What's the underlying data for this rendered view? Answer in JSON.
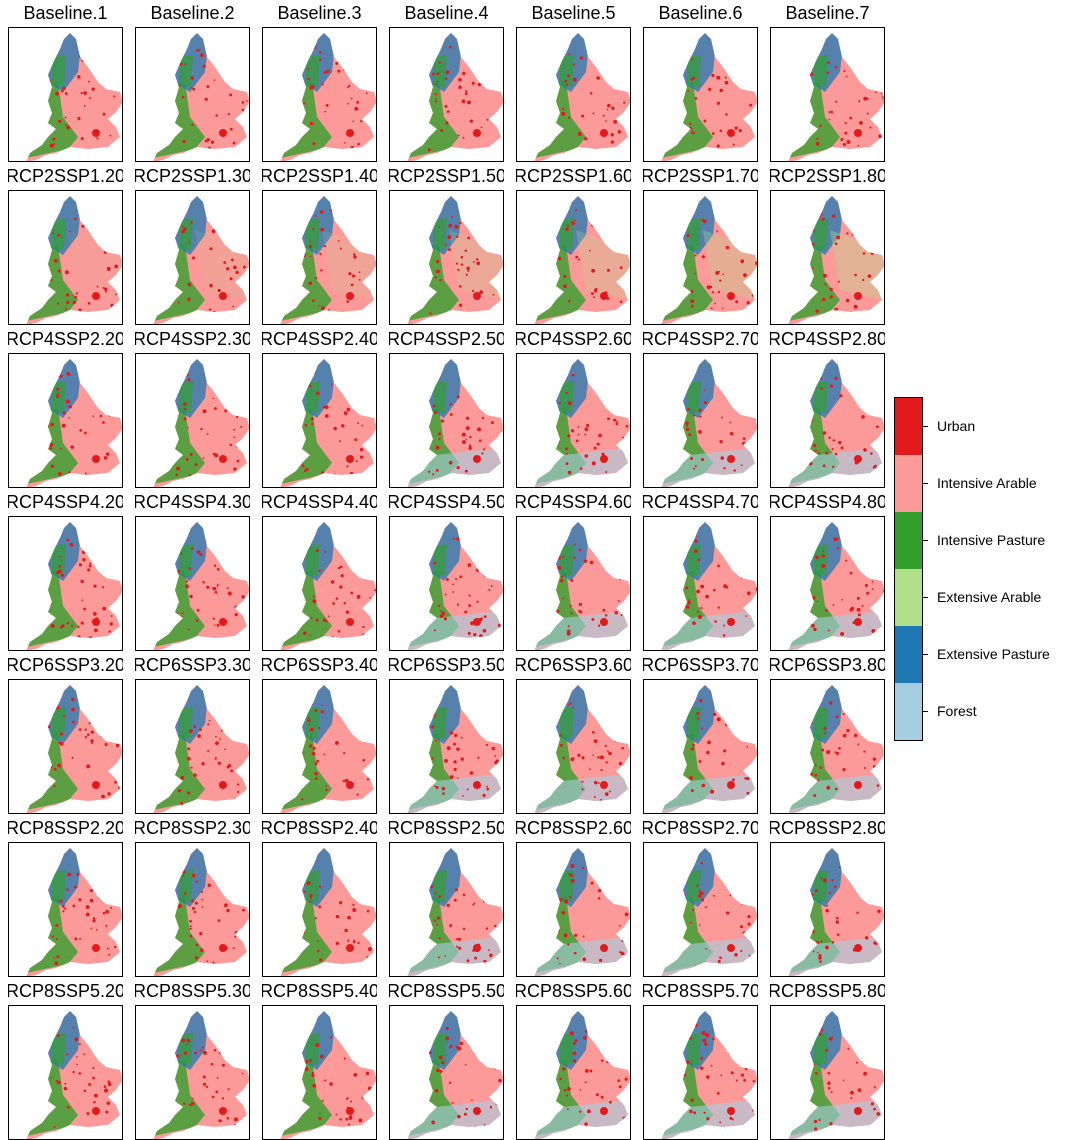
{
  "panels": [
    {
      "title": "Baseline.1"
    },
    {
      "title": "Baseline.2"
    },
    {
      "title": "Baseline.3"
    },
    {
      "title": "Baseline.4"
    },
    {
      "title": "Baseline.5"
    },
    {
      "title": "Baseline.6"
    },
    {
      "title": "Baseline.7"
    },
    {
      "title": "RCP2SSP1.20"
    },
    {
      "title": "RCP2SSP1.30"
    },
    {
      "title": "RCP2SSP1.40"
    },
    {
      "title": "RCP2SSP1.50"
    },
    {
      "title": "RCP2SSP1.60"
    },
    {
      "title": "RCP2SSP1.70"
    },
    {
      "title": "RCP2SSP1.80"
    },
    {
      "title": "RCP4SSP2.20"
    },
    {
      "title": "RCP4SSP2.30"
    },
    {
      "title": "RCP4SSP2.40"
    },
    {
      "title": "RCP4SSP2.50"
    },
    {
      "title": "RCP4SSP2.60"
    },
    {
      "title": "RCP4SSP2.70"
    },
    {
      "title": "RCP4SSP2.80"
    },
    {
      "title": "RCP4SSP4.20"
    },
    {
      "title": "RCP4SSP4.30"
    },
    {
      "title": "RCP4SSP4.40"
    },
    {
      "title": "RCP4SSP4.50"
    },
    {
      "title": "RCP4SSP4.60"
    },
    {
      "title": "RCP4SSP4.70"
    },
    {
      "title": "RCP4SSP4.80"
    },
    {
      "title": "RCP6SSP3.20"
    },
    {
      "title": "RCP6SSP3.30"
    },
    {
      "title": "RCP6SSP3.40"
    },
    {
      "title": "RCP6SSP3.50"
    },
    {
      "title": "RCP6SSP3.60"
    },
    {
      "title": "RCP6SSP3.70"
    },
    {
      "title": "RCP6SSP3.80"
    },
    {
      "title": "RCP8SSP2.20"
    },
    {
      "title": "RCP8SSP2.30"
    },
    {
      "title": "RCP8SSP2.40"
    },
    {
      "title": "RCP8SSP2.50"
    },
    {
      "title": "RCP8SSP2.60"
    },
    {
      "title": "RCP8SSP2.70"
    },
    {
      "title": "RCP8SSP2.80"
    },
    {
      "title": "RCP8SSP5.20"
    },
    {
      "title": "RCP8SSP5.30"
    },
    {
      "title": "RCP8SSP5.40"
    },
    {
      "title": "RCP8SSP5.50"
    },
    {
      "title": "RCP8SSP5.60"
    },
    {
      "title": "RCP8SSP5.70"
    },
    {
      "title": "RCP8SSP5.80"
    }
  ],
  "legend": {
    "items": [
      {
        "label": "Urban",
        "color": "#e31a1c"
      },
      {
        "label": "Intensive Arable",
        "color": "#fb9a99"
      },
      {
        "label": "Intensive Pasture",
        "color": "#33a02c"
      },
      {
        "label": "Extensive Arable",
        "color": "#b2df8a"
      },
      {
        "label": "Extensive Pasture",
        "color": "#1f78b4"
      },
      {
        "label": "Forest",
        "color": "#a6cee3"
      }
    ]
  }
}
